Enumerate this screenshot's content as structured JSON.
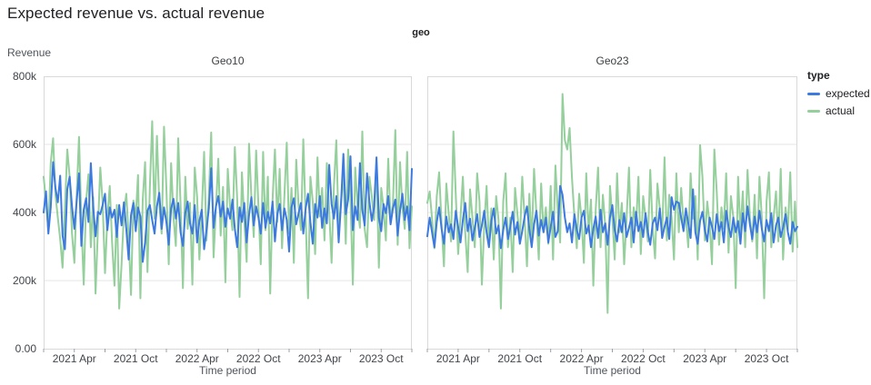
{
  "header": {
    "title": "Expected revenue vs. actual revenue"
  },
  "legend": {
    "title": "type",
    "position": "right",
    "items": [
      {
        "label": "expected",
        "color": "#3d7ae0"
      },
      {
        "label": "actual",
        "color": "#94cf9c"
      }
    ]
  },
  "style": {
    "grid_color": "#e6e6e6",
    "border_color": "#d9d9d9",
    "tick_color": "#9aa0a6",
    "line_width": 2
  },
  "chart_data": {
    "type": "line",
    "title": "Expected revenue vs. actual revenue",
    "facet_label": "geo",
    "x": {
      "label": "Time period",
      "interval": "weekly",
      "start": "2021-01",
      "end": "2023-12",
      "months_span": 36,
      "tick_months": [
        3,
        9,
        15,
        21,
        27,
        33
      ],
      "tick_labels": [
        "2021 Apr",
        "2021 Oct",
        "2022 Apr",
        "2022 Oct",
        "2023 Apr",
        "2023 Oct"
      ],
      "grid": false
    },
    "y": {
      "label": "Revenue",
      "lim": [
        0,
        800000
      ],
      "unit": "thousands",
      "tick_values_k": [
        800,
        600,
        400,
        200,
        0
      ],
      "tick_labels": [
        "800k",
        "600k",
        "400k",
        "200k",
        "0.00"
      ],
      "grid": true
    },
    "panels": [
      {
        "title": "Geo10",
        "series": [
          {
            "name": "expected",
            "color": "#3d7ae0",
            "values_k": [
              400,
              462,
              338,
              415,
              548,
              472,
              430,
              508,
              332,
              292,
              468,
              505,
              418,
              352,
              432,
              515,
              302,
              408,
              442,
              372,
              545,
              418,
              330,
              402,
              395,
              422,
              455,
              348,
              415,
              385,
              408,
              328,
              422,
              362,
              430,
              352,
              262,
              392,
              428,
              345,
              415,
              388,
              255,
              312,
              405,
              422,
              378,
              338,
              418,
              458,
              352,
              415,
              372,
              305,
              412,
              440,
              382,
              428,
              342,
              302,
              398,
              432,
              368,
              338,
              422,
              312,
              375,
              408,
              292,
              348,
              412,
              530,
              355,
              418,
              448,
              388,
              432,
              358,
              412,
              382,
              438,
              352,
              298,
              415,
              372,
              428,
              312,
              392,
              445,
              362,
              418,
              385,
              338,
              428,
              355,
              402,
              368,
              432,
              315,
              395,
              425,
              348,
              412,
              378,
              285,
              415,
              442,
              365,
              398,
              428,
              338,
              412,
              455,
              372,
              308,
              425,
              385,
              448,
              355,
              412,
              368,
              540,
              425,
              382,
              448,
              312,
              428,
              572,
              395,
              438,
              565,
              348,
              418,
              378,
              545,
              408,
              362,
              515,
              432,
              375,
              418,
              562,
              385,
              345,
              425,
              398,
              448,
              365,
              412,
              438,
              332,
              405,
              455,
              378,
              418,
              348,
              528
            ]
          },
          {
            "name": "actual",
            "color": "#94cf9c",
            "values_k": [
              505,
              432,
              348,
              545,
              618,
              452,
              385,
              322,
              238,
              412,
              585,
              505,
              338,
              252,
              448,
              622,
              375,
              188,
              432,
              512,
              298,
              445,
              162,
              352,
              532,
              428,
              222,
              385,
              478,
              312,
              185,
              422,
              118,
              248,
              398,
              455,
              328,
              158,
              435,
              385,
              510,
              148,
              438,
              548,
              225,
              472,
              668,
              382,
              625,
              428,
              338,
              652,
              472,
              248,
              545,
              388,
              302,
              618,
              422,
              178,
              505,
              352,
              428,
              188,
              532,
              445,
              262,
              398,
              578,
              318,
              448,
              635,
              268,
              412,
              558,
              332,
              475,
              195,
              528,
              415,
              348,
              592,
              438,
              152,
              518,
              378,
              255,
              602,
              445,
              328,
              582,
              415,
              248,
              578,
              348,
              505,
              162,
              438,
              585,
              372,
              528,
              295,
              448,
              605,
              338,
              472,
              252,
              555,
              418,
              348,
              615,
              385,
              148,
              505,
              432,
              278,
              562,
              388,
              472,
              318,
              545,
              405,
              252,
              478,
              612,
              348,
              428,
              515,
              308,
              585,
              438,
              188,
              532,
              415,
              355,
              638,
              352,
              298,
              505,
              448,
              378,
              545,
              238,
              472,
              415,
              318,
              558,
              372,
              428,
              642,
              305,
              548,
              415,
              352,
              578,
              295,
              418
            ]
          }
        ]
      },
      {
        "title": "Geo23",
        "series": [
          {
            "name": "expected",
            "color": "#3d7ae0",
            "values_k": [
              330,
              385,
              342,
              298,
              372,
              415,
              352,
              308,
              388,
              342,
              365,
              322,
              405,
              358,
              312,
              378,
              428,
              345,
              382,
              318,
              355,
              395,
              328,
              362,
              405,
              342,
              298,
              375,
              412,
              338,
              362,
              295,
              348,
              385,
              322,
              358,
              402,
              335,
              372,
              308,
              345,
              388,
              418,
              352,
              298,
              365,
              405,
              332,
              378,
              342,
              385,
              312,
              358,
              402,
              328,
              345,
              478,
              452,
              385,
              342,
              368,
              312,
              395,
              348,
              322,
              385,
              405,
              338,
              362,
              298,
              352,
              388,
              325,
              408,
              342,
              368,
              305,
              385,
              422,
              348,
              315,
              378,
              342,
              398,
              328,
              355,
              385,
              312,
              402,
              345,
              372,
              328,
              398,
              342,
              305,
              368,
              385,
              348,
              412,
              325,
              358,
              385,
              322,
              445,
              408,
              432,
              428,
              385,
              345,
              412,
              368,
              325,
              468,
              342,
              308,
              375,
              402,
              348,
              315,
              385,
              358,
              322,
              395,
              345,
              372,
              312,
              405,
              358,
              328,
              385,
              342,
              375,
              308,
              398,
              345,
              418,
              365,
              322,
              388,
              342,
              405,
              352,
              315,
              378,
              345,
              398,
              312,
              362,
              385,
              328,
              355,
              395,
              342,
              308,
              372,
              345,
              358
            ]
          },
          {
            "name": "actual",
            "color": "#94cf9c",
            "values_k": [
              428,
              462,
              382,
              295,
              448,
              518,
              365,
              242,
              485,
              398,
              315,
              638,
              452,
              278,
              385,
              505,
              342,
              225,
              468,
              385,
              298,
              515,
              432,
              188,
              362,
              478,
              305,
              412,
              262,
              448,
              378,
              118,
              432,
              515,
              298,
              385,
              225,
              472,
              395,
              318,
              505,
              385,
              242,
              455,
              312,
              528,
              395,
              262,
              485,
              342,
              415,
              308,
              478,
              262,
              538,
              405,
              312,
              748,
              612,
              585,
              648,
              502,
              388,
              295,
              455,
              382,
              252,
              515,
              342,
              438,
              185,
              408,
              532,
              298,
              452,
              362,
              105,
              478,
              385,
              262,
              515,
              342,
              428,
              248,
              385,
              532,
              298,
              415,
              362,
              505,
              278,
              448,
              385,
              315,
              525,
              352,
              265,
              485,
              412,
              338,
              562,
              318,
              452,
              385,
              262,
              515,
              342,
              472,
              368,
              385,
              298,
              515,
              382,
              448,
              262,
              598,
              505,
              318,
              432,
              365,
              248,
              585,
              462,
              305,
              415,
              352,
              515,
              282,
              448,
              385,
              178,
              505,
              342,
              462,
              298,
              525,
              385,
              315,
              452,
              265,
              505,
              385,
              148,
              432,
              518,
              298,
              385,
              462,
              315,
              528,
              262,
              415,
              348,
              518,
              285,
              432,
              298
            ]
          }
        ]
      }
    ]
  }
}
